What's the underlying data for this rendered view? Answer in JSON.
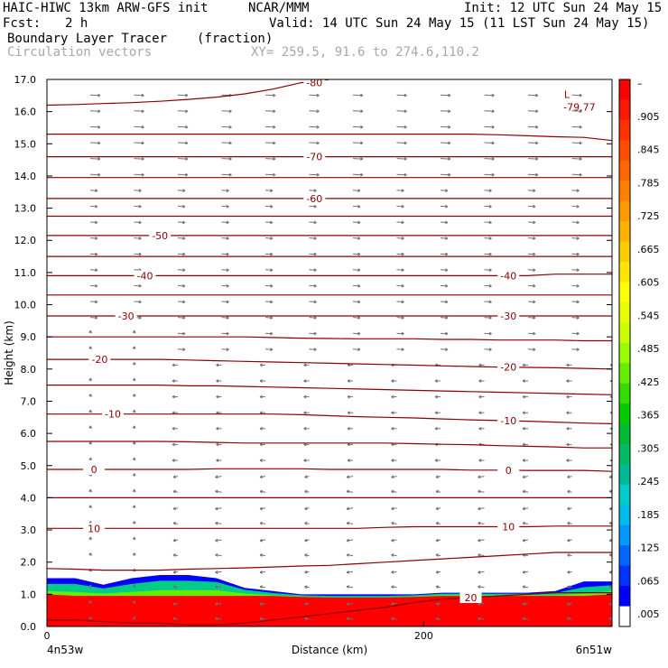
{
  "header": {
    "model": "HAIC-HIWC 13km ARW-GFS init",
    "org": "NCAR/MMM",
    "init": "Init: 12 UTC Sun 24 May 15",
    "fcst_label": "Fcst:",
    "fcst_value": "2 h",
    "valid": "Valid: 14 UTC Sun 24 May 15 (11 LST Sun 24 May 15)",
    "field_name": "Boundary Layer Tracer",
    "field_units": "(fraction)",
    "overlay_name": "Circulation vectors",
    "xy": "XY= 259.5, 91.6 to 274.6,110.2"
  },
  "chart_data": {
    "type": "heatmap",
    "xlabel": "Distance (km)",
    "ylabel": "Height (km)",
    "xlim": [
      0,
      300
    ],
    "ylim": [
      0,
      17
    ],
    "x_ticks": [
      {
        "value": 0,
        "label": "0"
      },
      {
        "value": 200,
        "label": "200"
      }
    ],
    "x_end_labels": {
      "left": "4n53w",
      "right": "6n51w"
    },
    "y_ticks": [
      "0.0",
      "1.0",
      "2.0",
      "3.0",
      "4.0",
      "5.0",
      "6.0",
      "7.0",
      "8.0",
      "9.0",
      "10.0",
      "11.0",
      "12.0",
      "13.0",
      "14.0",
      "15.0",
      "16.0",
      "17.0"
    ],
    "colorbar": {
      "labels": [
        "–",
        ".905",
        ".845",
        ".785",
        ".725",
        ".665",
        ".605",
        ".545",
        ".485",
        ".425",
        ".365",
        ".305",
        ".245",
        ".185",
        ".125",
        ".065",
        ".005"
      ],
      "colors": [
        "#ff0000",
        "#ff1a00",
        "#ff3300",
        "#ff4d00",
        "#ff6600",
        "#ff8000",
        "#ff9900",
        "#ffb300",
        "#ffcc00",
        "#ffe600",
        "#ffff00",
        "#e6ff00",
        "#ccff00",
        "#99ff00",
        "#66ee00",
        "#33dd00",
        "#00cc00",
        "#00bb33",
        "#00bb66",
        "#00bb99",
        "#00cccc",
        "#00bbee",
        "#0099ff",
        "#0066ff",
        "#0033ff",
        "#0000ff",
        "#ffffff"
      ]
    },
    "tracer_layer": {
      "description_levels": [
        {
          "fraction": 0.95,
          "top_km": [
            1.0,
            0.95,
            0.95,
            0.95,
            0.95,
            0.95,
            0.95,
            0.95,
            0.95,
            0.92,
            0.9,
            0.9,
            0.9,
            0.92,
            0.95,
            0.95,
            0.95,
            0.95,
            0.95,
            0.95,
            1.0
          ]
        },
        {
          "fraction": 0.5,
          "top_km": [
            1.2,
            1.2,
            1.1,
            1.2,
            1.3,
            1.3,
            1.3,
            1.1,
            1.0,
            0.95,
            0.92,
            0.92,
            0.92,
            0.95,
            1.0,
            1.0,
            1.0,
            1.0,
            1.0,
            1.1,
            1.2
          ]
        },
        {
          "fraction": 0.005,
          "top_km": [
            1.5,
            1.5,
            1.3,
            1.5,
            1.6,
            1.6,
            1.5,
            1.2,
            1.1,
            1.0,
            1.0,
            1.0,
            1.0,
            1.0,
            1.05,
            1.05,
            1.05,
            1.05,
            1.1,
            1.4,
            1.4
          ]
        }
      ]
    },
    "isotherms": [
      {
        "value": 20,
        "y": [
          0.2,
          0.2,
          0.15,
          0.1,
          0.1,
          0.05,
          0.05,
          0.1,
          0.2,
          0.3,
          0.4,
          0.5,
          0.6,
          0.75,
          0.85,
          0.9,
          0.95,
          1.0,
          1.05,
          1.05,
          1.05
        ],
        "labels": [
          {
            "x": 225,
            "text": "20"
          }
        ]
      },
      {
        "value": 15,
        "y": [
          1.8,
          1.78,
          1.75,
          1.75,
          1.75,
          1.78,
          1.8,
          1.82,
          1.85,
          1.88,
          1.9,
          1.95,
          2.0,
          2.05,
          2.1,
          2.15,
          2.2,
          2.25,
          2.3,
          2.3,
          2.3
        ],
        "labels": []
      },
      {
        "value": 10,
        "y": [
          3.05,
          3.05,
          3.05,
          3.05,
          3.05,
          3.05,
          3.05,
          3.05,
          3.05,
          3.05,
          3.05,
          3.05,
          3.08,
          3.1,
          3.1,
          3.1,
          3.1,
          3.1,
          3.12,
          3.12,
          3.12
        ],
        "labels": [
          {
            "x": 25,
            "text": "10"
          },
          {
            "x": 245,
            "text": "10"
          }
        ]
      },
      {
        "value": 5,
        "y": [
          4.0,
          4.0,
          4.0,
          4.0,
          4.0,
          4.0,
          4.0,
          4.0,
          4.0,
          4.0,
          4.0,
          4.0,
          4.0,
          4.0,
          4.0,
          4.0,
          4.0,
          4.0,
          4.0,
          4.0,
          4.0
        ],
        "labels": []
      },
      {
        "value": 0,
        "y": [
          4.88,
          4.88,
          4.88,
          4.88,
          4.88,
          4.88,
          4.9,
          4.9,
          4.9,
          4.9,
          4.88,
          4.88,
          4.88,
          4.88,
          4.88,
          4.86,
          4.86,
          4.85,
          4.85,
          4.85,
          4.82
        ],
        "labels": [
          {
            "x": 25,
            "text": "0"
          },
          {
            "x": 245,
            "text": "0"
          }
        ]
      },
      {
        "value": -5,
        "y": [
          5.75,
          5.75,
          5.75,
          5.75,
          5.75,
          5.74,
          5.72,
          5.7,
          5.7,
          5.7,
          5.7,
          5.7,
          5.7,
          5.68,
          5.66,
          5.65,
          5.62,
          5.6,
          5.58,
          5.55,
          5.55
        ],
        "labels": []
      },
      {
        "value": -10,
        "y": [
          6.6,
          6.6,
          6.6,
          6.6,
          6.6,
          6.6,
          6.6,
          6.6,
          6.6,
          6.58,
          6.55,
          6.52,
          6.5,
          6.48,
          6.45,
          6.42,
          6.4,
          6.38,
          6.35,
          6.32,
          6.3
        ],
        "labels": [
          {
            "x": 35,
            "text": "-10"
          },
          {
            "x": 245,
            "text": "-10"
          }
        ]
      },
      {
        "value": -15,
        "y": [
          7.5,
          7.5,
          7.5,
          7.5,
          7.5,
          7.48,
          7.48,
          7.46,
          7.44,
          7.42,
          7.4,
          7.38,
          7.36,
          7.34,
          7.32,
          7.3,
          7.28,
          7.26,
          7.24,
          7.22,
          7.2
        ],
        "labels": []
      },
      {
        "value": -20,
        "y": [
          8.3,
          8.3,
          8.3,
          8.3,
          8.3,
          8.28,
          8.26,
          8.24,
          8.22,
          8.2,
          8.18,
          8.16,
          8.14,
          8.12,
          8.1,
          8.08,
          8.06,
          8.05,
          8.04,
          8.02,
          8.0
        ],
        "labels": [
          {
            "x": 28,
            "text": "-20"
          },
          {
            "x": 245,
            "text": "-20"
          }
        ]
      },
      {
        "value": -25,
        "y": [
          9.0,
          9.0,
          9.0,
          9.0,
          9.0,
          9.0,
          9.0,
          9.0,
          8.98,
          8.96,
          8.95,
          8.94,
          8.94,
          8.94,
          8.92,
          8.92,
          8.9,
          8.9,
          8.9,
          8.88,
          8.88
        ],
        "labels": []
      },
      {
        "value": -30,
        "y": [
          9.65,
          9.65,
          9.65,
          9.65,
          9.65,
          9.65,
          9.65,
          9.65,
          9.65,
          9.65,
          9.65,
          9.65,
          9.65,
          9.65,
          9.65,
          9.65,
          9.65,
          9.65,
          9.65,
          9.65,
          9.65
        ],
        "labels": [
          {
            "x": 42,
            "text": "-30"
          },
          {
            "x": 245,
            "text": "-30"
          }
        ]
      },
      {
        "value": -35,
        "y": [
          10.3,
          10.3,
          10.3,
          10.3,
          10.3,
          10.3,
          10.3,
          10.3,
          10.3,
          10.3,
          10.3,
          10.3,
          10.3,
          10.3,
          10.3,
          10.3,
          10.3,
          10.3,
          10.3,
          10.3,
          10.3
        ],
        "labels": []
      },
      {
        "value": -40,
        "y": [
          10.9,
          10.9,
          10.9,
          10.9,
          10.9,
          10.9,
          10.9,
          10.9,
          10.9,
          10.9,
          10.9,
          10.9,
          10.9,
          10.9,
          10.9,
          10.9,
          10.9,
          10.9,
          10.95,
          10.95,
          10.95
        ],
        "labels": [
          {
            "x": 52,
            "text": "-40"
          },
          {
            "x": 245,
            "text": "-40"
          }
        ]
      },
      {
        "value": -45,
        "y": [
          11.5,
          11.5,
          11.5,
          11.5,
          11.5,
          11.5,
          11.5,
          11.5,
          11.5,
          11.5,
          11.5,
          11.5,
          11.5,
          11.5,
          11.5,
          11.5,
          11.5,
          11.5,
          11.5,
          11.5,
          11.5
        ],
        "labels": []
      },
      {
        "value": -50,
        "y": [
          12.15,
          12.15,
          12.15,
          12.15,
          12.15,
          12.15,
          12.15,
          12.15,
          12.15,
          12.15,
          12.15,
          12.15,
          12.15,
          12.15,
          12.15,
          12.15,
          12.15,
          12.15,
          12.15,
          12.15,
          12.15
        ],
        "labels": [
          {
            "x": 60,
            "text": "-50"
          }
        ]
      },
      {
        "value": -55,
        "y": [
          12.75,
          12.75,
          12.75,
          12.75,
          12.75,
          12.75,
          12.75,
          12.75,
          12.75,
          12.75,
          12.75,
          12.75,
          12.75,
          12.75,
          12.75,
          12.75,
          12.75,
          12.75,
          12.75,
          12.75,
          12.75
        ],
        "labels": []
      },
      {
        "value": -60,
        "y": [
          13.3,
          13.3,
          13.3,
          13.3,
          13.3,
          13.3,
          13.3,
          13.3,
          13.3,
          13.3,
          13.3,
          13.3,
          13.3,
          13.3,
          13.3,
          13.3,
          13.3,
          13.3,
          13.3,
          13.3,
          13.3
        ],
        "labels": [
          {
            "x": 142,
            "text": "-60"
          }
        ]
      },
      {
        "value": -65,
        "y": [
          13.95,
          13.95,
          13.95,
          13.95,
          13.95,
          13.95,
          13.95,
          13.95,
          13.95,
          13.95,
          13.95,
          13.95,
          13.95,
          13.95,
          13.95,
          13.95,
          13.95,
          13.95,
          13.95,
          13.95,
          13.95
        ],
        "labels": []
      },
      {
        "value": -70,
        "y": [
          14.6,
          14.6,
          14.6,
          14.6,
          14.6,
          14.6,
          14.6,
          14.6,
          14.6,
          14.6,
          14.6,
          14.6,
          14.6,
          14.6,
          14.6,
          14.6,
          14.6,
          14.6,
          14.6,
          14.6,
          14.6
        ],
        "labels": [
          {
            "x": 142,
            "text": "-70"
          }
        ]
      },
      {
        "value": -75,
        "y": [
          15.3,
          15.3,
          15.3,
          15.3,
          15.3,
          15.3,
          15.3,
          15.3,
          15.3,
          15.3,
          15.3,
          15.3,
          15.3,
          15.3,
          15.3,
          15.3,
          15.28,
          15.25,
          15.22,
          15.2,
          15.1
        ],
        "labels": []
      },
      {
        "value": -80,
        "y": [
          16.2,
          16.22,
          16.25,
          16.28,
          16.32,
          16.38,
          16.45,
          16.55,
          16.7,
          16.9,
          17.0,
          null,
          null,
          null,
          null,
          null,
          null,
          null,
          null,
          null,
          null
        ],
        "labels": [
          {
            "x": 142,
            "text": "-80"
          }
        ]
      }
    ],
    "min_marker": {
      "x": 276,
      "y": 16.25,
      "text": "-79.77"
    }
  }
}
